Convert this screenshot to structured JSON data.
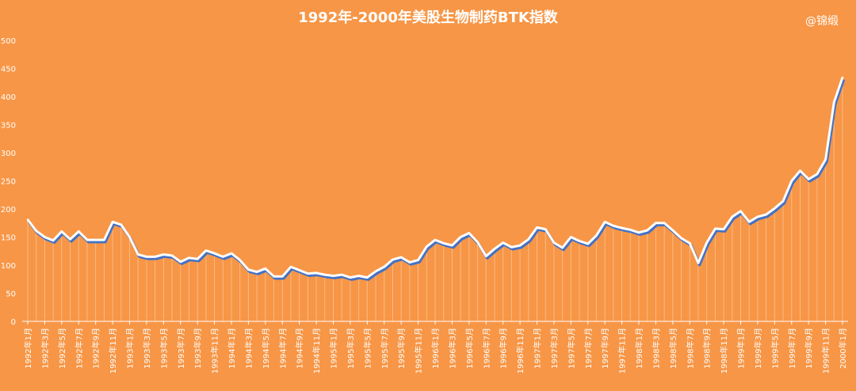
{
  "watermark": "@锦缎",
  "chart_data": {
    "type": "line",
    "title": "1992年-2000年美股生物制药BTK指数",
    "ylim": [
      0,
      500
    ],
    "yticks": [
      "0",
      "50",
      "100",
      "150",
      "200",
      "250",
      "300",
      "350",
      "400",
      "450",
      "500"
    ],
    "x_labels": [
      "1992年1月",
      "1992年3月",
      "1992年5月",
      "1992年7月",
      "1992年9月",
      "1992年11月",
      "1993年1月",
      "1993年3月",
      "1993年5月",
      "1993年7月",
      "1993年9月",
      "1993年11月",
      "1994年1月",
      "1994年3月",
      "1994年5月",
      "1994年7月",
      "1994年9月",
      "1994年11月",
      "1995年1月",
      "1995年3月",
      "1995年5月",
      "1995年7月",
      "1995年9月",
      "1995年11月",
      "1996年1月",
      "1996年3月",
      "1996年5月",
      "1996年7月",
      "1996年9月",
      "1996年11月",
      "1997年1月",
      "1997年3月",
      "1997年5月",
      "1997年7月",
      "1997年9月",
      "1997年11月",
      "1998年1月",
      "1998年3月",
      "1998年5月",
      "1998年7月",
      "1998年9月",
      "1998年11月",
      "1999年1月",
      "1999年3月",
      "1999年5月",
      "1999年7月",
      "1999年9月",
      "1999年11月",
      "2000年1月"
    ],
    "values": [
      181,
      161,
      150,
      144,
      160,
      146,
      160,
      145,
      145,
      145,
      177,
      172,
      150,
      119,
      115,
      115,
      119,
      117,
      106,
      113,
      111,
      126,
      121,
      115,
      121,
      109,
      92,
      88,
      94,
      80,
      80,
      97,
      91,
      85,
      86,
      83,
      81,
      83,
      78,
      81,
      78,
      89,
      97,
      110,
      114,
      105,
      109,
      133,
      145,
      139,
      135,
      150,
      157,
      141,
      116,
      129,
      140,
      132,
      135,
      146,
      167,
      164,
      140,
      131,
      150,
      143,
      138,
      153,
      177,
      170,
      166,
      163,
      158,
      162,
      175,
      175,
      162,
      148,
      139,
      104,
      140,
      165,
      164,
      186,
      196,
      177,
      186,
      190,
      201,
      214,
      250,
      268,
      253,
      262,
      288,
      390,
      434
    ],
    "line_color": "#FFFFFF",
    "shadow_color": "#4472C4"
  }
}
